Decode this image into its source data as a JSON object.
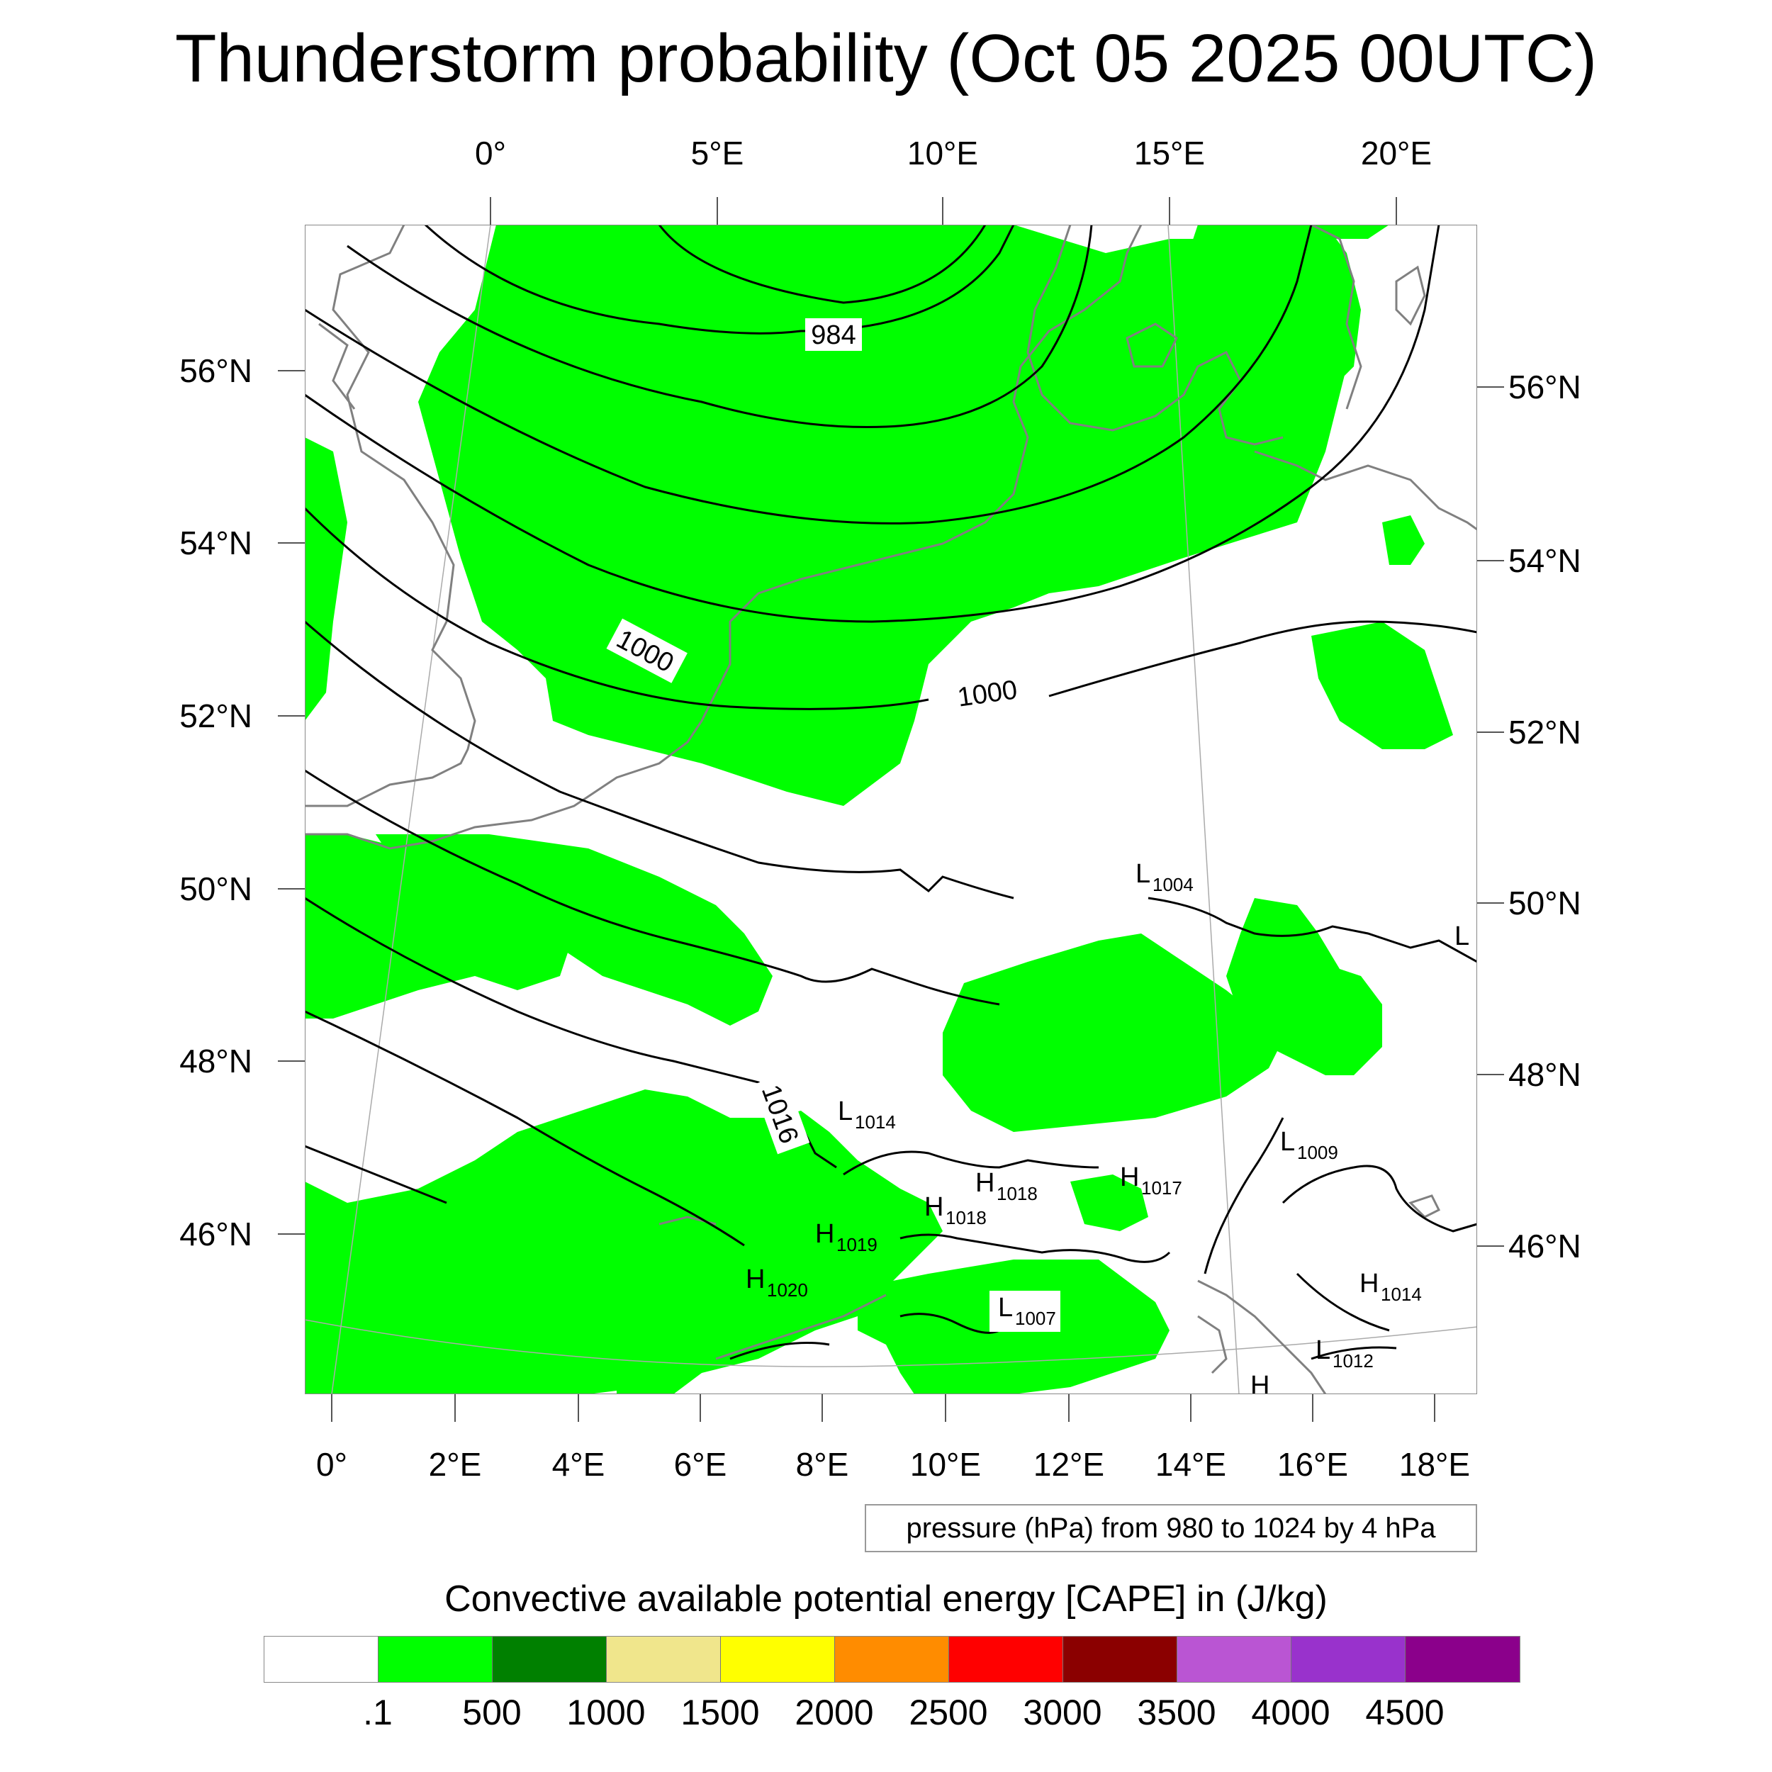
{
  "title": "Thunderstorm probability (Oct 05 2025 00UTC)",
  "top_lon_labels": [
    "0°",
    "5°E",
    "10°E",
    "15°E",
    "20°E"
  ],
  "left_lat_labels": [
    "56°N",
    "54°N",
    "52°N",
    "50°N",
    "48°N",
    "46°N"
  ],
  "right_lat_labels": [
    "56°N",
    "54°N",
    "52°N",
    "50°N",
    "48°N",
    "46°N"
  ],
  "bottom_lon_labels": [
    "0°",
    "2°E",
    "4°E",
    "6°E",
    "8°E",
    "10°E",
    "12°E",
    "14°E",
    "16°E",
    "18°E"
  ],
  "contour_note": "pressure (hPa) from 980 to 1024 by 4 hPa",
  "colorbar": {
    "title": "Convective available potential energy [CAPE] in (J/kg)",
    "colors": [
      "#ffffff",
      "#00ff00",
      "#008000",
      "#f0e68c",
      "#ffff00",
      "#ff8c00",
      "#ff0000",
      "#8b0000",
      "#ba55d3",
      "#9932cc",
      "#8b008b"
    ],
    "labels": [
      ".1",
      "500",
      "1000",
      "1500",
      "2000",
      "2500",
      "3000",
      "3500",
      "4000",
      "4500"
    ]
  },
  "isobar_labels": [
    "984",
    "1000",
    "1000",
    "1016"
  ],
  "pressure_centers": [
    {
      "type": "L",
      "value": "1004"
    },
    {
      "type": "L",
      "value": "1014"
    },
    {
      "type": "L",
      "value": "1009"
    },
    {
      "type": "H",
      "value": "1017"
    },
    {
      "type": "H",
      "value": "1018"
    },
    {
      "type": "H",
      "value": "1018"
    },
    {
      "type": "H",
      "value": "1019"
    },
    {
      "type": "H",
      "value": "1020"
    },
    {
      "type": "L",
      "value": "1007"
    },
    {
      "type": "H",
      "value": "1014"
    },
    {
      "type": "L",
      "value": "1012"
    },
    {
      "type": "L",
      "value": ""
    },
    {
      "type": "H",
      "value": ""
    }
  ]
}
